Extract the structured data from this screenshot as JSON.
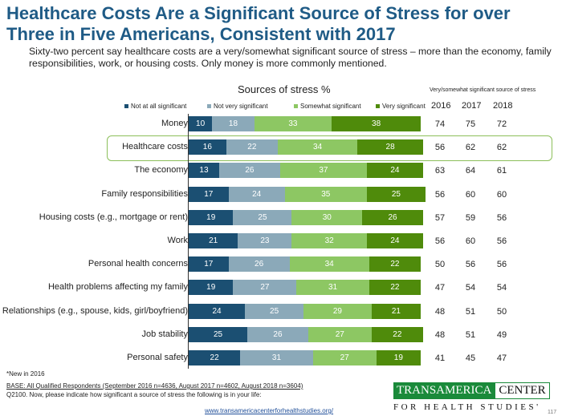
{
  "title_lines": [
    "Healthcare Costs Are a Significant Source of Stress for over",
    "Three in Five Americans, Consistent with 2017"
  ],
  "subtitle": "Sixty-two percent say healthcare costs are a very/somewhat significant source of stress – more than the economy, family responsibilities, work, or housing costs.  Only money is more commonly mentioned.",
  "chart_data": {
    "type": "bar",
    "stacked": true,
    "orientation": "horizontal",
    "title": "Sources of stress %",
    "categories": [
      "Money",
      "Healthcare costs",
      "The economy",
      "Family responsibilities",
      "Housing costs (e.g., mortgage or rent)",
      "Work",
      "Personal health concerns",
      "Health problems affecting my family",
      "Relationships (e.g., spouse, kids, girl/boyfriend)",
      "Job stability",
      "Personal safety"
    ],
    "series": [
      {
        "name": "Not at all significant",
        "color": "#1b4f72",
        "values": [
          10,
          16,
          13,
          17,
          19,
          21,
          17,
          19,
          24,
          25,
          22
        ]
      },
      {
        "name": "Not very significant",
        "color": "#8ba9b9",
        "values": [
          18,
          22,
          26,
          24,
          25,
          23,
          26,
          27,
          25,
          26,
          31
        ]
      },
      {
        "name": "Somewhat significant",
        "color": "#8dc763",
        "values": [
          33,
          34,
          37,
          35,
          30,
          32,
          34,
          31,
          29,
          27,
          27
        ]
      },
      {
        "name": "Very significant",
        "color": "#4f8b0b",
        "values": [
          38,
          28,
          24,
          25,
          26,
          24,
          22,
          22,
          21,
          22,
          19
        ]
      }
    ],
    "highlighted": "Healthcare costs",
    "table": {
      "title": "Very/somewhat significant source of stress",
      "years": [
        "2016",
        "2017",
        "2018"
      ],
      "rows": [
        [
          74,
          75,
          72
        ],
        [
          56,
          62,
          62
        ],
        [
          63,
          64,
          61
        ],
        [
          56,
          60,
          60
        ],
        [
          57,
          59,
          56
        ],
        [
          56,
          60,
          56
        ],
        [
          50,
          56,
          56
        ],
        [
          47,
          54,
          54
        ],
        [
          48,
          51,
          50
        ],
        [
          48,
          51,
          49
        ],
        [
          41,
          45,
          47
        ]
      ]
    }
  },
  "footer": {
    "note": "*New in 2016",
    "base": "BASE: All Qualified Respondents (September 2016 n=4636, August 2017 n=4602, August 2018 n=3604)",
    "question": "Q2100. Now, please indicate how significant a source of stress the following is in your life:",
    "link": "www.transamericacenterforhealthstudies.org/",
    "page": "117"
  },
  "logo": {
    "word1": "TRANSAMERICA",
    "word2": "CENTER",
    "line2": "FOR HEALTH STUDIES'"
  }
}
